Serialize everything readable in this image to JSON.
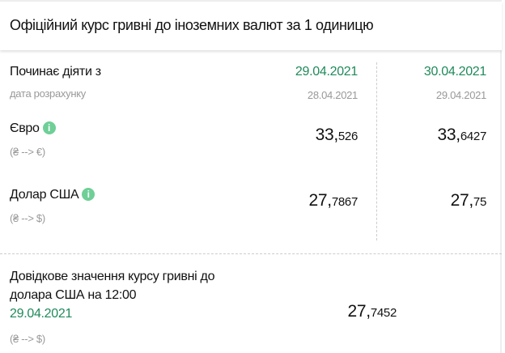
{
  "header": {
    "title": "Офіційний курс гривні до іноземних валют за 1 одиницю"
  },
  "table": {
    "effective_label": "Починає діяти з",
    "calc_label": "дата розрахунку",
    "columns": [
      {
        "effective_date": "29.04.2021",
        "calc_date": "28.04.2021"
      },
      {
        "effective_date": "30.04.2021",
        "calc_date": "29.04.2021"
      }
    ],
    "rows": [
      {
        "name": "Євро",
        "pair": "(₴ --> €)",
        "values": [
          {
            "int": "33,",
            "dec": "526"
          },
          {
            "int": "33,",
            "dec": "6427"
          }
        ]
      },
      {
        "name": "Долар США",
        "pair": "(₴ --> $)",
        "values": [
          {
            "int": "27,",
            "dec": "7867"
          },
          {
            "int": "27,",
            "dec": "75"
          }
        ]
      }
    ],
    "info_icon": "i"
  },
  "reference": {
    "line1": "Довідкове значення курсу гривні до",
    "line2": "долара США на 12:00",
    "date": "29.04.2021",
    "pair": "(₴ --> $)",
    "value": {
      "int": "27,",
      "dec": "7452"
    }
  },
  "colors": {
    "accent": "#1f8a5a",
    "info": "#6fcf97"
  }
}
